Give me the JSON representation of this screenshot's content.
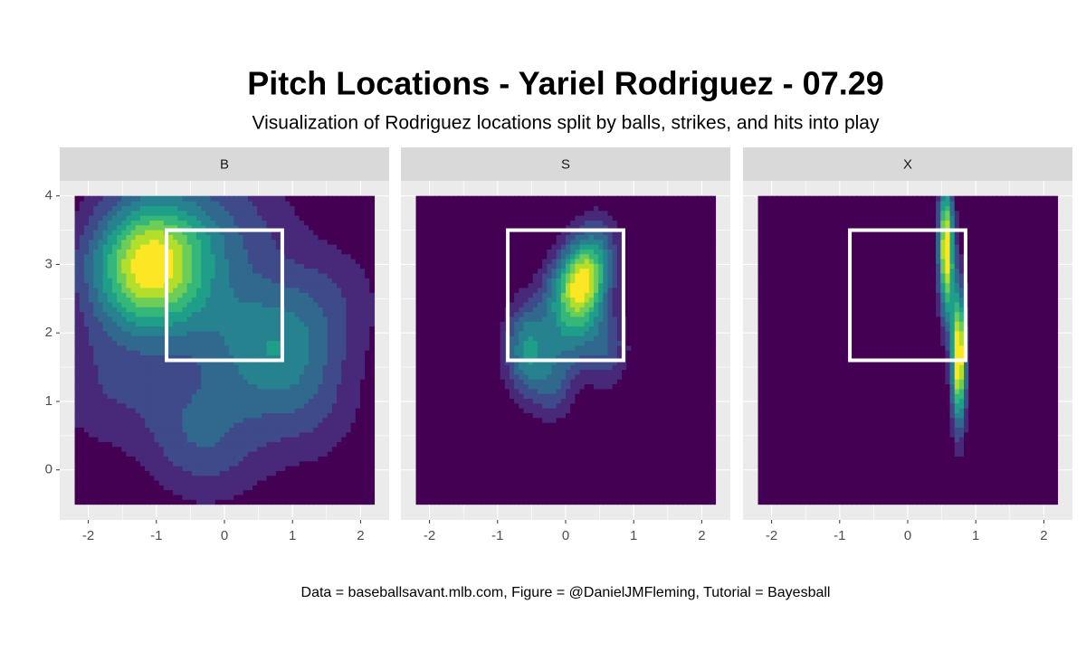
{
  "chart_data": {
    "type": "density2d",
    "title": "Pitch Locations - Yariel Rodriguez - 07.29",
    "subtitle": "Visualization of Rodriguez locations split by balls, strikes, and hits into play",
    "caption": "Data = baseballsavant.mlb.com, Figure = @DanielJMFleming, Tutorial = Bayesball",
    "facets": [
      {
        "label": "B",
        "x": [
          -1.1,
          -1.2,
          -1.0,
          -1.15,
          -0.95,
          -1.3,
          0.8,
          0.7,
          -0.2,
          -0.5,
          1.5,
          0.3,
          -1.8,
          0.1,
          1.2,
          -0.7
        ],
        "y": [
          3.0,
          3.1,
          2.9,
          3.3,
          2.7,
          2.6,
          1.8,
          1.7,
          0.3,
          0.8,
          2.5,
          3.6,
          1.2,
          2.2,
          0.9,
          3.7
        ]
      },
      {
        "label": "S",
        "x": [
          0.2,
          0.3,
          0.25,
          -0.1,
          -0.6,
          -0.55,
          0.6,
          -0.2,
          0.5,
          0.1
        ],
        "y": [
          2.8,
          2.7,
          2.75,
          2.5,
          1.6,
          2.0,
          1.8,
          1.3,
          3.2,
          2.0
        ]
      },
      {
        "label": "X",
        "x": [
          0.55,
          0.55,
          0.6,
          0.75,
          0.75,
          0.75
        ],
        "y": [
          3.5,
          3.15,
          3.0,
          1.85,
          1.7,
          1.4
        ]
      }
    ],
    "xlim": [
      -2.42,
      2.42
    ],
    "ylim": [
      -0.73,
      4.22
    ],
    "xticks": [
      -2,
      -1,
      0,
      1,
      2
    ],
    "yticks": [
      0,
      1,
      2,
      3,
      4
    ],
    "density_xlim": [
      -2.2,
      2.2
    ],
    "density_ylim": [
      -0.5,
      4
    ],
    "strike_zone": {
      "x": [
        -0.85,
        0.85
      ],
      "y": [
        1.6,
        3.5
      ]
    },
    "palette": [
      "#440154",
      "#482878",
      "#3e4a89",
      "#31688e",
      "#26828e",
      "#1f9e89",
      "#35b779",
      "#6dcd59",
      "#b4de2c",
      "#fde725"
    ],
    "grid": true
  }
}
